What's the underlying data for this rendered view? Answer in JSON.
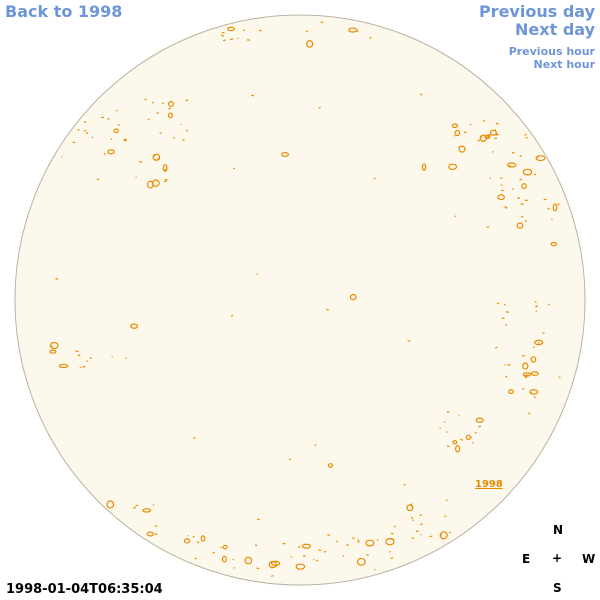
{
  "nav": {
    "back_year": "Back to 1998",
    "previous_day": "Previous day",
    "next_day": "Next day",
    "previous_hour": "Previous hour",
    "next_hour": "Next hour"
  },
  "disk_label": "1998",
  "timestamp": "1998-01-04T06:35:04",
  "compass": {
    "north": "N",
    "east": "E",
    "center": "+",
    "west": "W",
    "south": "S"
  }
}
